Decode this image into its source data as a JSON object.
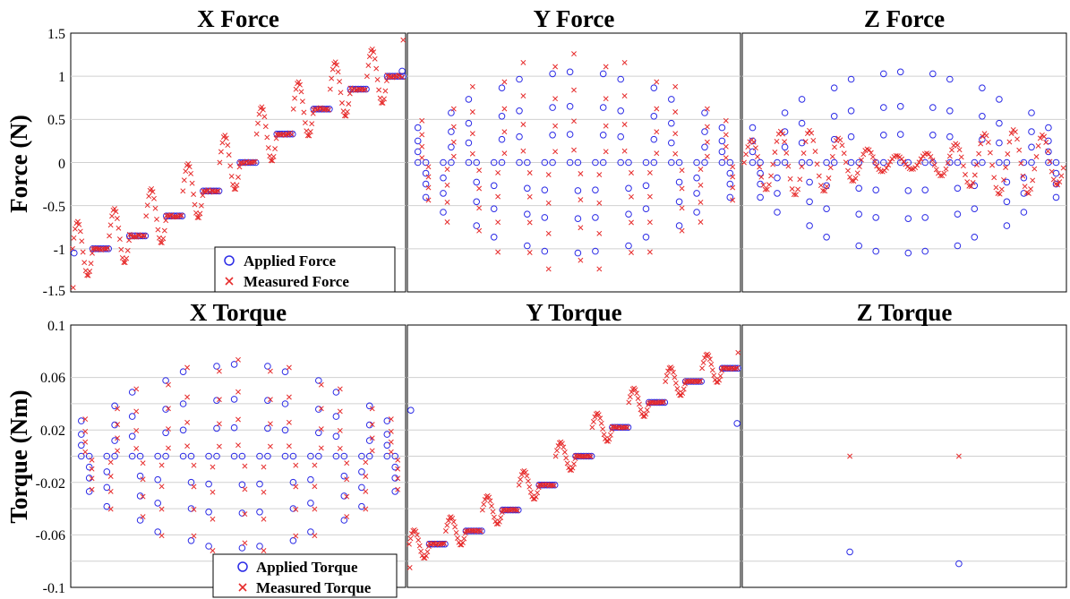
{
  "colors": {
    "applied": "#2a2ae6",
    "measured": "#e62a2a",
    "grid": "#d0d0d0"
  },
  "chart_data": [
    {
      "type": "scatter",
      "title": "X Force",
      "ylabel": "Force (N)",
      "ylim": [
        -1.5,
        1.5
      ],
      "yticks": [
        "1.5",
        "1",
        "0.5",
        "0",
        "-0.5",
        "-1",
        "-1.5"
      ],
      "grid": true,
      "legend_position": "bottom-right",
      "series": [
        {
          "name": "Applied Force",
          "marker": "circle",
          "levels": [
            -1.0,
            -0.85,
            -0.62,
            -0.33,
            0.0,
            0.33,
            0.62,
            0.85,
            1.0
          ],
          "end_values": [
            -1.05,
            1.06
          ]
        },
        {
          "name": "Measured Force",
          "marker": "x",
          "range": [
            -1.45,
            1.42
          ],
          "oscillation_amplitude": 0.35
        }
      ]
    },
    {
      "type": "scatter",
      "title": "Y Force",
      "ylabel": "",
      "ylim": [
        -1.5,
        1.5
      ],
      "grid": true,
      "series": [
        {
          "name": "Applied Force",
          "marker": "circle",
          "pattern": "lobes",
          "peak": 1.05
        },
        {
          "name": "Measured Force",
          "marker": "x",
          "pattern": "lobes",
          "peak": 1.2
        }
      ]
    },
    {
      "type": "scatter",
      "title": "Z Force",
      "ylabel": "",
      "ylim": [
        -1.5,
        1.5
      ],
      "grid": true,
      "series": [
        {
          "name": "Applied Force",
          "marker": "circle",
          "pattern": "lobes",
          "peak": 1.05
        },
        {
          "name": "Measured Force",
          "marker": "x",
          "pattern": "wave",
          "peak": 0.38
        }
      ]
    },
    {
      "type": "scatter",
      "title": "X Torque",
      "ylabel": "Torque (Nm)",
      "ylim": [
        -0.1,
        0.1
      ],
      "yticks": [
        "0.1",
        "0.06",
        "0.02",
        "-0.02",
        "-0.06",
        "-0.1"
      ],
      "grid": true,
      "legend_position": "bottom-right",
      "series": [
        {
          "name": "Applied Torque",
          "marker": "circle",
          "pattern": "lobes",
          "peak": 0.07
        },
        {
          "name": "Measured Torque",
          "marker": "x",
          "pattern": "lobes",
          "peak": 0.07
        }
      ]
    },
    {
      "type": "scatter",
      "title": "Y Torque",
      "ylabel": "",
      "ylim": [
        -0.1,
        0.1
      ],
      "grid": true,
      "series": [
        {
          "name": "Applied Torque",
          "marker": "circle",
          "levels": [
            -0.067,
            -0.057,
            -0.041,
            -0.022,
            0.0,
            0.022,
            0.041,
            0.057,
            0.067
          ],
          "end_values": [
            0.035,
            0.025
          ]
        },
        {
          "name": "Measured Torque",
          "marker": "x",
          "range": [
            -0.085,
            0.079
          ],
          "oscillation_amplitude": 0.012
        }
      ]
    },
    {
      "type": "scatter",
      "title": "Z Torque",
      "ylabel": "",
      "ylim": [
        -0.1,
        0.1
      ],
      "grid": true,
      "series": [
        {
          "name": "Applied Torque",
          "marker": "circle",
          "x": [
            0.33,
            0.67
          ],
          "values": [
            -0.073,
            -0.082
          ]
        },
        {
          "name": "Measured Torque",
          "marker": "x",
          "x": [
            0.33,
            0.67
          ],
          "values": [
            0.0,
            0.0
          ]
        }
      ]
    }
  ]
}
